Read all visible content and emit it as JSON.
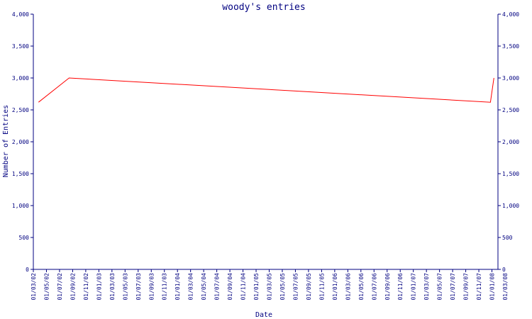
{
  "chart_data": {
    "type": "line",
    "title": "woody's entries",
    "xlabel": "Date",
    "ylabel": "Number of Entries",
    "ylim": [
      0,
      4000
    ],
    "y_ticks": [
      "0",
      "500",
      "1,000",
      "1,500",
      "2,000",
      "2,500",
      "3,000",
      "3,500",
      "4,000"
    ],
    "x_tick_labels": [
      "01/03/02",
      "01/05/02",
      "01/07/02",
      "01/09/02",
      "01/11/02",
      "01/01/03",
      "01/03/03",
      "01/05/03",
      "01/07/03",
      "01/09/03",
      "01/11/03",
      "01/01/04",
      "01/03/04",
      "01/05/04",
      "01/07/04",
      "01/09/04",
      "01/11/04",
      "01/01/05",
      "01/03/05",
      "01/05/05",
      "01/07/05",
      "01/09/05",
      "01/11/05",
      "01/01/06",
      "01/03/06",
      "01/05/06",
      "01/07/06",
      "01/09/06",
      "01/11/06",
      "01/01/07",
      "01/03/07",
      "01/05/07",
      "01/07/07",
      "01/09/07",
      "01/11/07",
      "01/01/08",
      "01/03/08"
    ],
    "grid": false,
    "series": [
      {
        "color": "#ff0000",
        "x": [
          "2002-03-25",
          "2002-08-15",
          "2007-12-25",
          "2008-01-10"
        ],
        "y": [
          2620,
          3000,
          2620,
          3000
        ]
      }
    ],
    "colors": {
      "axis": "#000080",
      "line": "#ff0000"
    }
  }
}
